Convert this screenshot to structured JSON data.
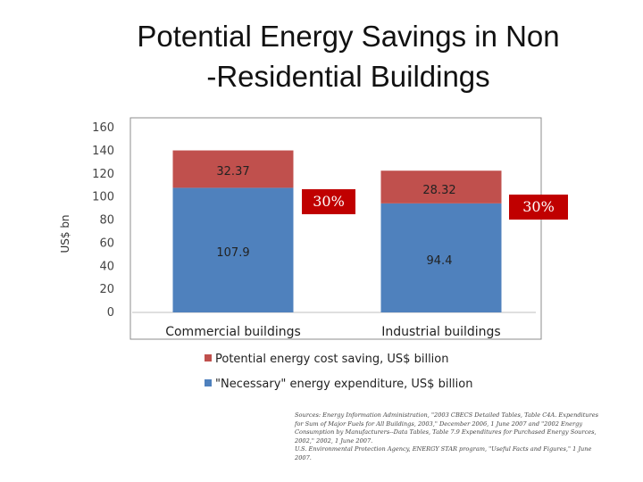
{
  "title": {
    "line1": "Potential Energy Savings in Non",
    "line2": "-Residential Buildings"
  },
  "colors": {
    "necessary": "#4f81bd",
    "saving": "#c0504d",
    "callout": "#c00000",
    "frame": "#8c8c8c"
  },
  "chart_data": {
    "type": "bar",
    "stacked": true,
    "categories": [
      "Commercial buildings",
      "Industrial buildings"
    ],
    "series": [
      {
        "name": "\"Necessary\" energy expenditure, US$ billion",
        "values": [
          107.9,
          94.4
        ],
        "labels": [
          "107.9",
          "94.4"
        ]
      },
      {
        "name": "Potential energy cost saving, US$ billion",
        "values": [
          32.37,
          28.32
        ],
        "labels": [
          "32.37",
          "28.32"
        ]
      }
    ],
    "ylabel": "US$ bn",
    "ylim": [
      0,
      160
    ],
    "yticks": [
      0,
      20,
      40,
      60,
      80,
      100,
      120,
      140,
      160
    ],
    "callouts": [
      "30%",
      "30%"
    ],
    "legend_position": "bottom"
  },
  "source": {
    "lines": [
      "Sources: Energy Information Administration, \"2003 CBECS Detailed Tables, Table C4A. Expenditures",
      "for Sum of Major Fuels for All Buildings, 2003,\" December 2006, 1 June 2007 and \"2002 Energy",
      "Consumption by Manufacturers--Data Tables, Table 7.9 Expenditures for Purchased Energy Sources,",
      "2002,\" 2002, 1 June 2007.",
      "U.S. Environmental Protection Agency, ENERGY STAR program, \"Useful Facts and Figures,\" 1 June",
      "2007."
    ]
  }
}
